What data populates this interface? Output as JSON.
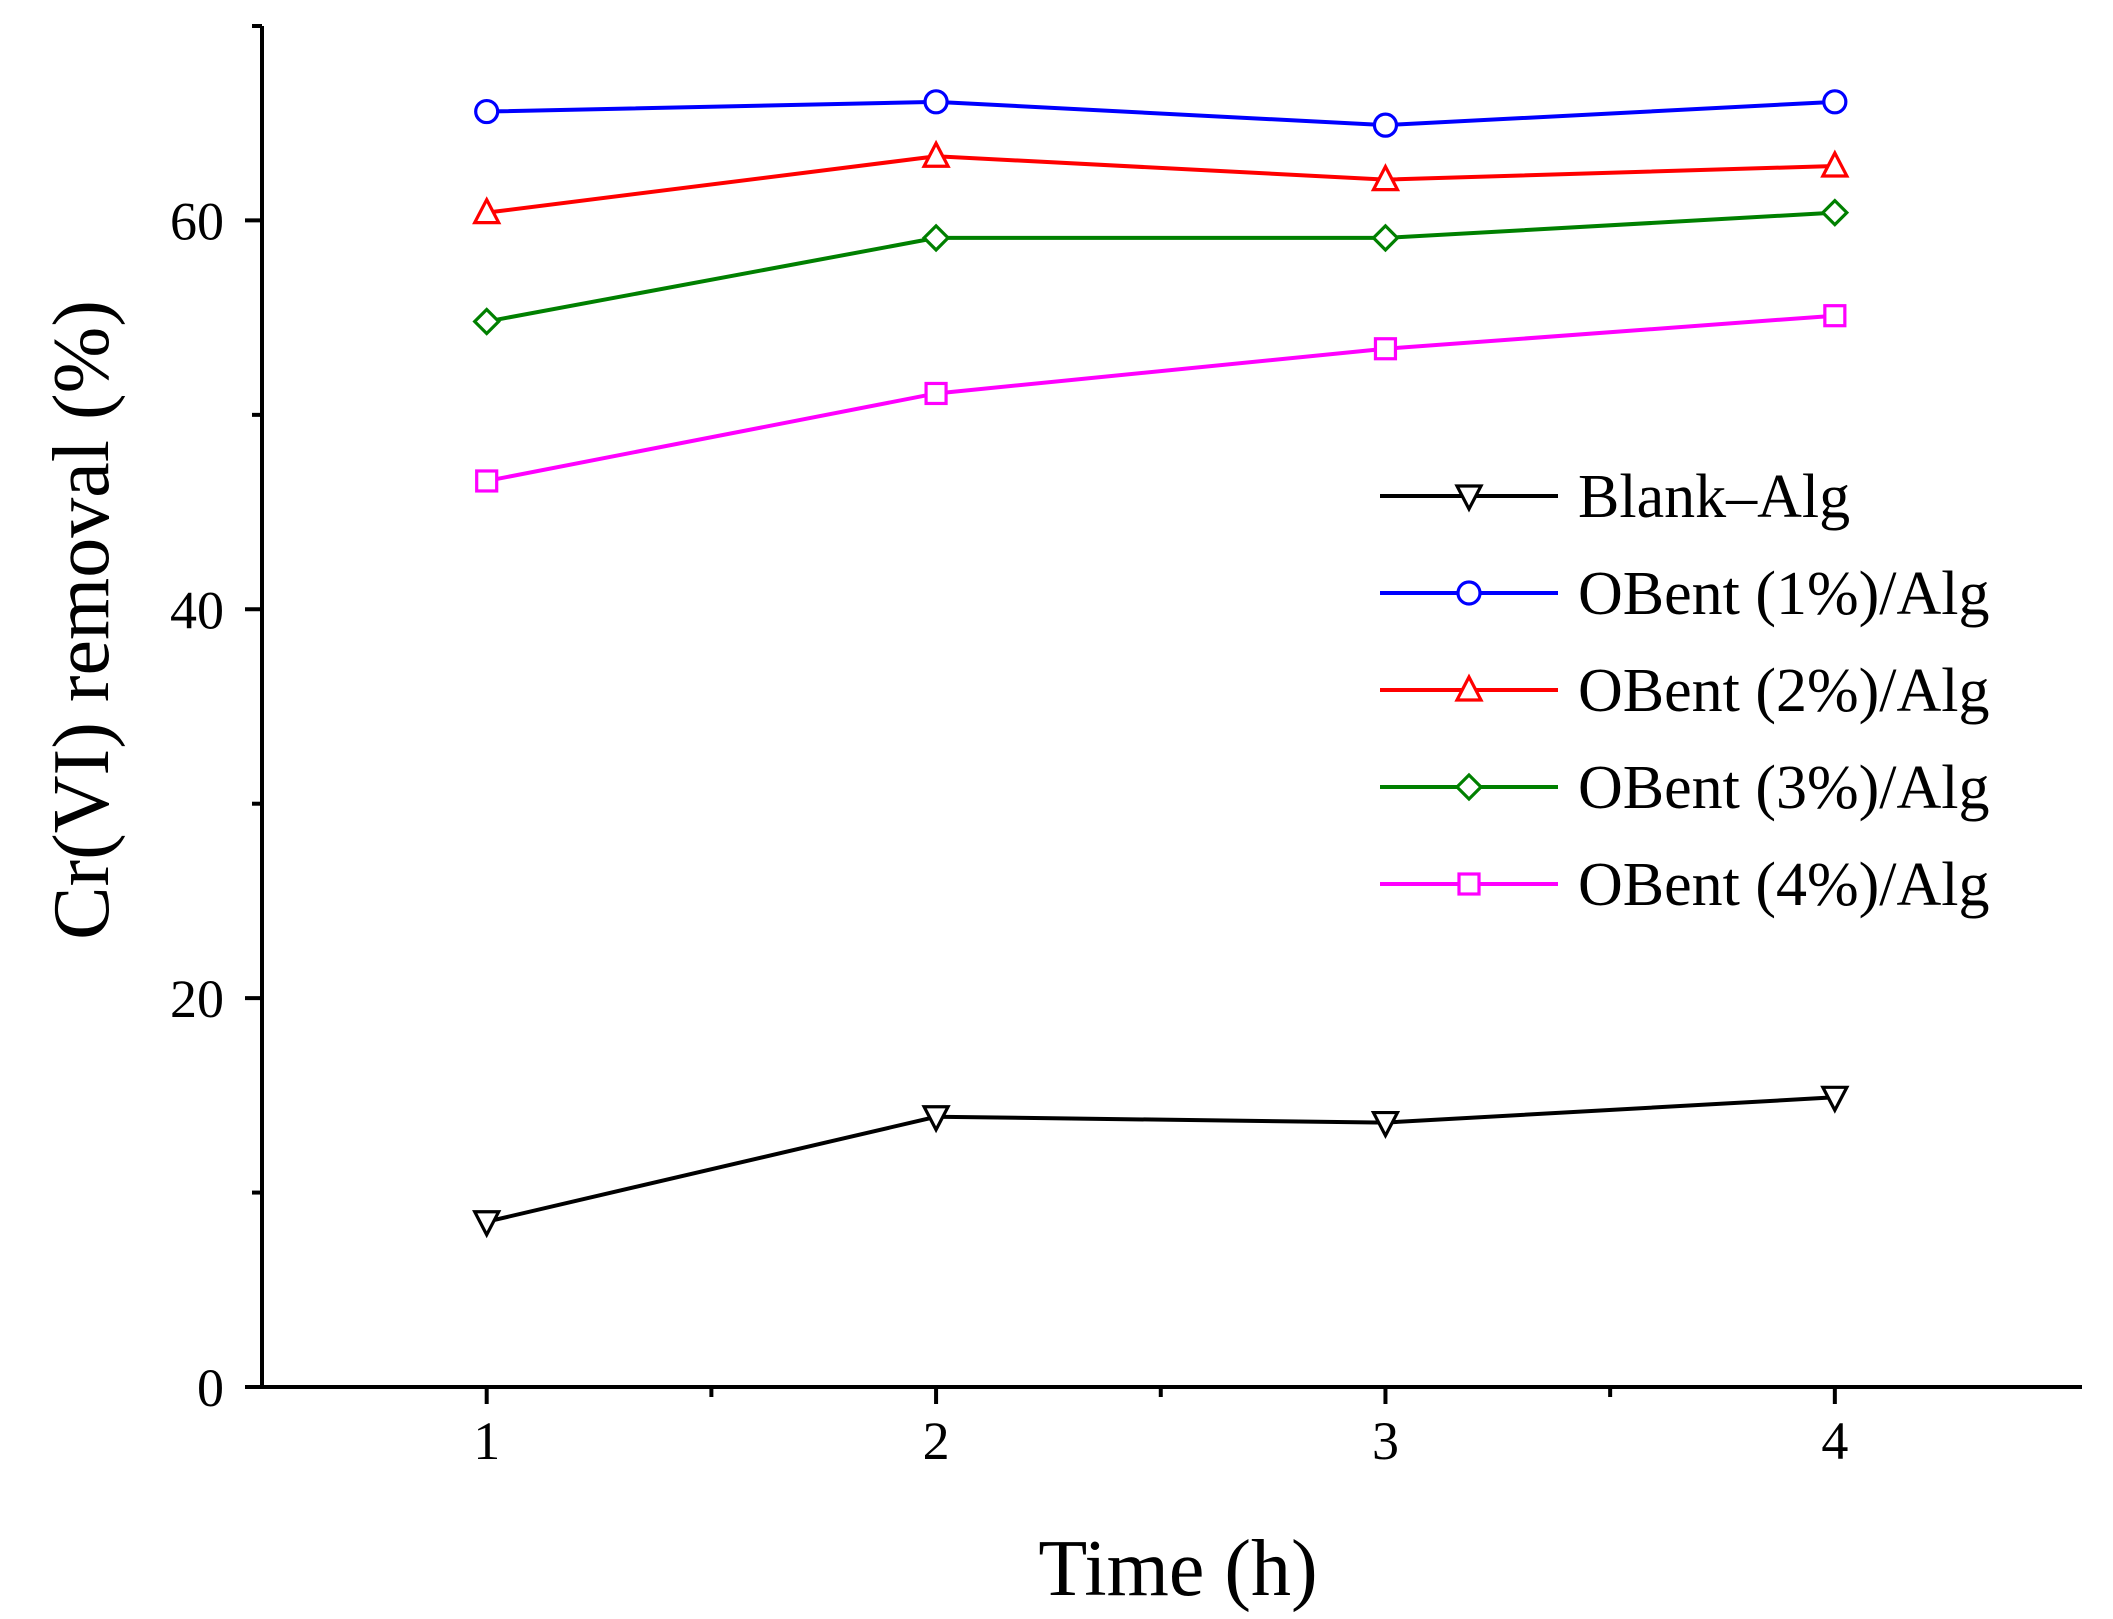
{
  "chart_data": {
    "type": "line",
    "title": "",
    "xlabel": "Time (h)",
    "ylabel": "Cr(VI) removal (%)",
    "x": [
      1,
      2,
      3,
      4
    ],
    "xlim": [
      0.5,
      4.55
    ],
    "ylim": [
      0,
      70
    ],
    "xticks": [
      "1",
      "2",
      "3",
      "4"
    ],
    "yticks": [
      "0",
      "20",
      "40",
      "60"
    ],
    "grid": false,
    "legend_position": "right",
    "series": [
      {
        "name": "Blank–Alg",
        "marker": "triangle-down",
        "color": "#000000",
        "values": [
          8.5,
          13.9,
          13.6,
          14.9
        ]
      },
      {
        "name": "OBent (1%)/Alg",
        "marker": "circle",
        "color": "#0000ff",
        "values": [
          65.6,
          66.1,
          64.9,
          66.1
        ]
      },
      {
        "name": "OBent (2%)/Alg",
        "marker": "triangle-up",
        "color": "#ff0000",
        "values": [
          60.4,
          63.3,
          62.1,
          62.8
        ]
      },
      {
        "name": "OBent (3%)/Alg",
        "marker": "diamond",
        "color": "#008000",
        "values": [
          54.8,
          59.1,
          59.1,
          60.4
        ]
      },
      {
        "name": "OBent (4%)/Alg",
        "marker": "square",
        "color": "#ff00ff",
        "values": [
          46.6,
          51.1,
          53.4,
          55.1
        ]
      }
    ]
  }
}
